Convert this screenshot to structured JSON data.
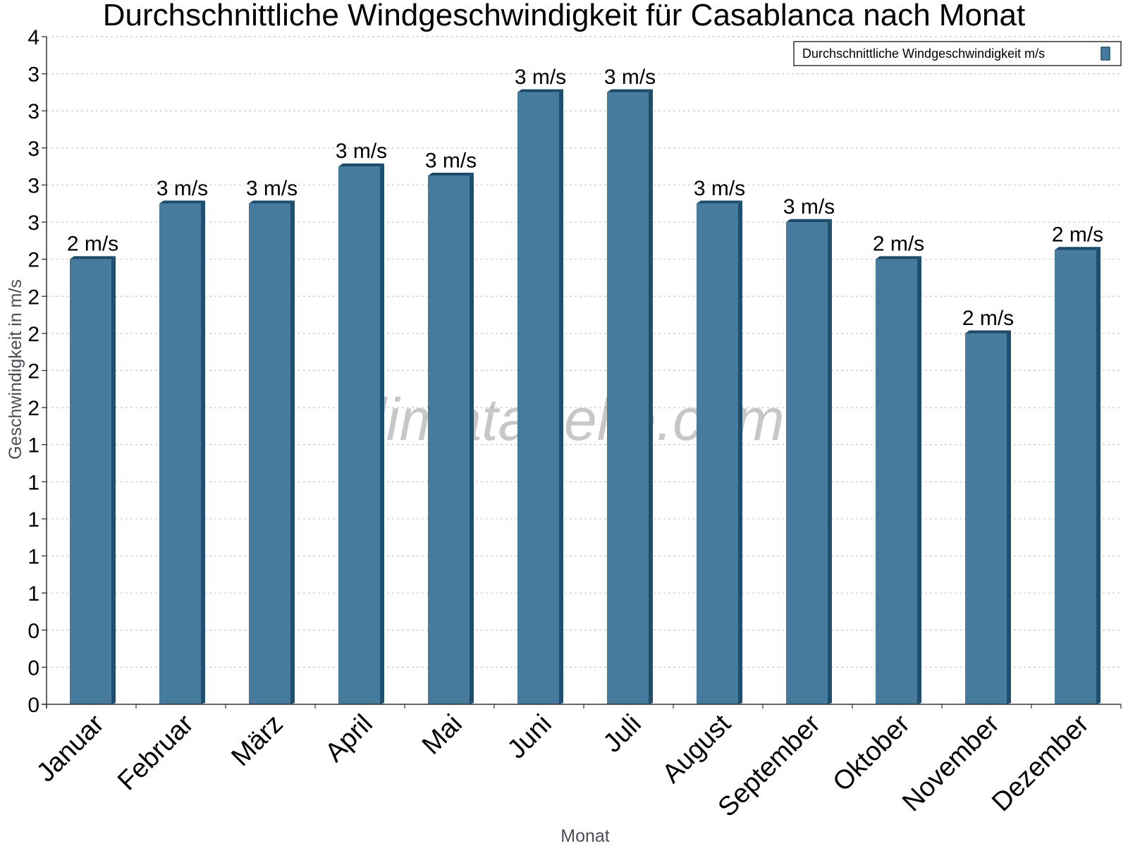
{
  "chart_data": {
    "type": "bar",
    "title": "Durchschnittliche Windgeschwindigkeit für Casablanca nach Monat",
    "xlabel": "Monat",
    "ylabel": "Geschwindigkeit in m/s",
    "categories": [
      "Januar",
      "Februar",
      "März",
      "April",
      "Mai",
      "Juni",
      "Juli",
      "August",
      "September",
      "Oktober",
      "November",
      "Dezember"
    ],
    "series": [
      {
        "name": "Durchschnittliche Windgeschwindigkeit m/s",
        "values": [
          2.4,
          2.7,
          2.7,
          2.9,
          2.85,
          3.3,
          3.3,
          2.7,
          2.6,
          2.4,
          2.0,
          2.45
        ],
        "data_labels": [
          "2 m/s",
          "3 m/s",
          "3 m/s",
          "3 m/s",
          "3 m/s",
          "3 m/s",
          "3 m/s",
          "3 m/s",
          "3 m/s",
          "2 m/s",
          "2 m/s",
          "2 m/s"
        ],
        "color": "#467b9d"
      }
    ],
    "ylim": [
      0,
      3.6
    ],
    "yticks": [
      0,
      0.2,
      0.4,
      0.6,
      0.8,
      1.0,
      1.2,
      1.4,
      1.6,
      1.8,
      2.0,
      2.2,
      2.4,
      2.6,
      2.8,
      3.0,
      3.2,
      3.4,
      3.6
    ],
    "ytick_labels": [
      "0",
      "0",
      "0",
      "1",
      "1",
      "1",
      "1",
      "1",
      "2",
      "2",
      "2",
      "2",
      "2",
      "3",
      "3",
      "3",
      "3",
      "3",
      "4"
    ],
    "grid": true,
    "legend_position": "top-right",
    "watermark": "klimatabelle.com",
    "colors": {
      "bar": "#467b9d",
      "bar_side": "#1f4e6e",
      "bar_top": "#1c4a6a",
      "grid": "#c8c8c8"
    }
  }
}
